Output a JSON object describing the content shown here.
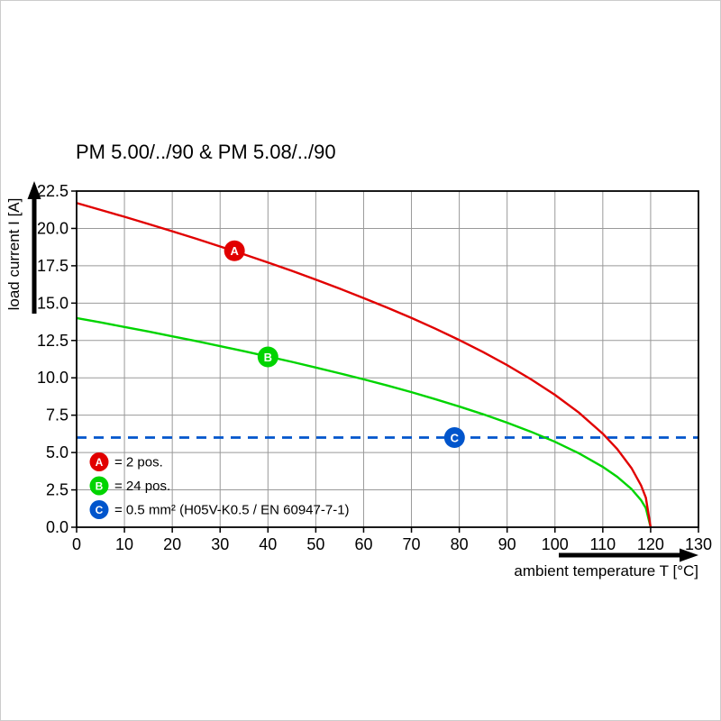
{
  "title": "PM 5.00/../90 & PM 5.08/../90",
  "colors": {
    "grid": "#999999",
    "axis": "#000000",
    "frame": "#cccccc",
    "marker_text": "#ffffff",
    "series_a": "#e10000",
    "series_b": "#00d400",
    "series_c": "#0055cc"
  },
  "chart_data": {
    "type": "line",
    "title": "PM 5.00/../90 & PM 5.08/../90",
    "xlabel": "ambient temperature T [°C]",
    "ylabel": "load current I [A]",
    "xlim": [
      0,
      130
    ],
    "ylim": [
      0,
      22.5
    ],
    "grid": true,
    "legend_position": "inside bottom-left",
    "xticks": [
      0,
      10,
      20,
      30,
      40,
      50,
      60,
      70,
      80,
      90,
      100,
      110,
      120,
      130
    ],
    "xtick_labels": [
      "0",
      "10",
      "20",
      "30",
      "40",
      "50",
      "60",
      "70",
      "80",
      "90",
      "100",
      "110",
      "120",
      "130"
    ],
    "yticks": [
      0,
      2.5,
      5,
      7.5,
      10,
      12.5,
      15,
      17.5,
      20,
      22.5
    ],
    "ytick_labels": [
      "0.0",
      "2.5",
      "5.0",
      "7.5",
      "10.0",
      "12.5",
      "15.0",
      "17.5",
      "20.0",
      "22.5"
    ],
    "series": [
      {
        "id": "C",
        "legend": "= 0.5 mm² (H05V-K0.5 / EN 60947-7-1)",
        "color": "#0055cc",
        "style": "dashed",
        "marker": {
          "x": 79,
          "y": 6.0
        },
        "points": [
          [
            0,
            6.0
          ],
          [
            130,
            6.0
          ]
        ]
      },
      {
        "id": "B",
        "legend": "= 24 pos.",
        "color": "#00d400",
        "style": "solid",
        "marker": {
          "x": 40,
          "y": 11.4
        },
        "points": [
          [
            0,
            14.0
          ],
          [
            5,
            13.71
          ],
          [
            10,
            13.4
          ],
          [
            15,
            13.1
          ],
          [
            20,
            12.78
          ],
          [
            25,
            12.46
          ],
          [
            30,
            12.12
          ],
          [
            35,
            11.78
          ],
          [
            40,
            11.43
          ],
          [
            45,
            11.07
          ],
          [
            50,
            10.69
          ],
          [
            55,
            10.3
          ],
          [
            60,
            9.9
          ],
          [
            65,
            9.48
          ],
          [
            70,
            9.04
          ],
          [
            75,
            8.57
          ],
          [
            80,
            8.08
          ],
          [
            85,
            7.56
          ],
          [
            90,
            7.0
          ],
          [
            95,
            6.39
          ],
          [
            100,
            5.72
          ],
          [
            105,
            4.95
          ],
          [
            110,
            4.04
          ],
          [
            113,
            3.38
          ],
          [
            116,
            2.56
          ],
          [
            118,
            1.81
          ],
          [
            119,
            1.28
          ],
          [
            120,
            0
          ]
        ]
      },
      {
        "id": "A",
        "legend": "= 2 pos.",
        "color": "#e10000",
        "style": "solid",
        "marker": {
          "x": 33,
          "y": 18.5
        },
        "points": [
          [
            0,
            21.7
          ],
          [
            5,
            21.24
          ],
          [
            10,
            20.78
          ],
          [
            15,
            20.3
          ],
          [
            20,
            19.81
          ],
          [
            25,
            19.31
          ],
          [
            30,
            18.79
          ],
          [
            35,
            18.26
          ],
          [
            40,
            17.72
          ],
          [
            45,
            17.16
          ],
          [
            50,
            16.57
          ],
          [
            55,
            15.97
          ],
          [
            60,
            15.34
          ],
          [
            65,
            14.69
          ],
          [
            70,
            14.01
          ],
          [
            75,
            13.29
          ],
          [
            80,
            12.53
          ],
          [
            85,
            11.72
          ],
          [
            90,
            10.85
          ],
          [
            95,
            9.9
          ],
          [
            100,
            8.86
          ],
          [
            105,
            7.67
          ],
          [
            110,
            6.26
          ],
          [
            113,
            5.24
          ],
          [
            116,
            3.96
          ],
          [
            118,
            2.8
          ],
          [
            119,
            1.98
          ],
          [
            120,
            0
          ]
        ]
      }
    ],
    "legend_order": [
      "A",
      "B",
      "C"
    ]
  }
}
